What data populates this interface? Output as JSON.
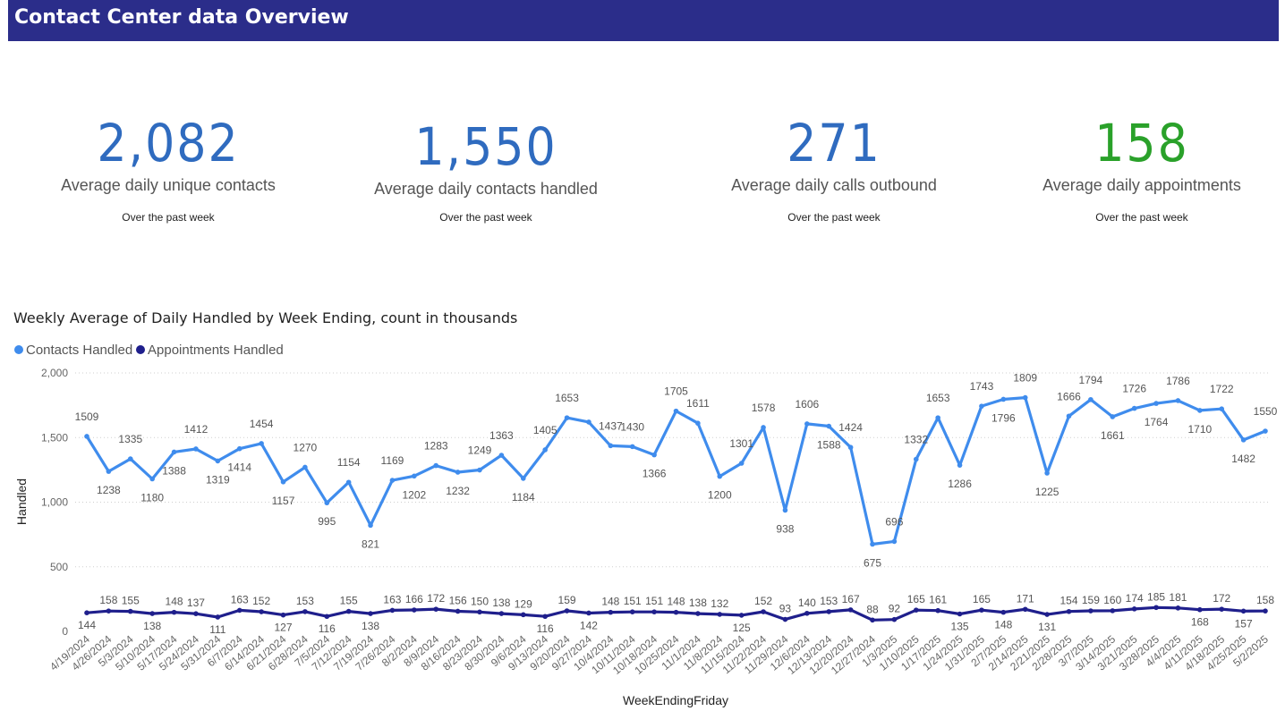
{
  "header": {
    "title": "Contact Center data Overview"
  },
  "kpis": [
    {
      "value": "2,082",
      "label": "Average daily unique contacts",
      "sub": "Over the past week",
      "color": "#2f6bbf"
    },
    {
      "value": "1,550",
      "label": "Average daily contacts handled",
      "sub": "Over the past week",
      "color": "#2f6bbf"
    },
    {
      "value": "271",
      "label": "Average daily calls outbound",
      "sub": "Over the past week",
      "color": "#2f6bbf"
    },
    {
      "value": "158",
      "label": "Average daily appointments",
      "sub": "Over the past week",
      "color": "#2aa12a"
    }
  ],
  "chart_data": {
    "type": "line",
    "title": "Weekly Average of Daily Handled by Week Ending, count in thousands",
    "xlabel": "WeekEndingFriday",
    "ylabel": "Handled",
    "ylim": [
      0,
      2000
    ],
    "yticks": [
      0,
      500,
      1000,
      1500,
      2000
    ],
    "ytick_labels": [
      "0",
      "500",
      "1,000",
      "1,500",
      "2,000"
    ],
    "grid": true,
    "legend": "top-left",
    "categories": [
      "4/19/2024",
      "4/26/2024",
      "5/3/2024",
      "5/10/2024",
      "5/17/2024",
      "5/24/2024",
      "5/31/2024",
      "6/7/2024",
      "6/14/2024",
      "6/21/2024",
      "6/28/2024",
      "7/5/2024",
      "7/12/2024",
      "7/19/2024",
      "7/26/2024",
      "8/2/2024",
      "8/9/2024",
      "8/16/2024",
      "8/23/2024",
      "8/30/2024",
      "9/6/2024",
      "9/13/2024",
      "9/20/2024",
      "9/27/2024",
      "10/4/2024",
      "10/11/2024",
      "10/18/2024",
      "10/25/2024",
      "11/1/2024",
      "11/8/2024",
      "11/15/2024",
      "11/22/2024",
      "11/29/2024",
      "12/6/2024",
      "12/13/2024",
      "12/20/2024",
      "12/27/2024",
      "1/3/2025",
      "1/10/2025",
      "1/17/2025",
      "1/24/2025",
      "1/31/2025",
      "2/7/2025",
      "2/14/2025",
      "2/21/2025",
      "2/28/2025",
      "3/7/2025",
      "3/14/2025",
      "3/21/2025",
      "3/28/2025",
      "4/4/2025",
      "4/11/2025",
      "4/18/2025",
      "4/25/2025",
      "5/2/2025"
    ],
    "series": [
      {
        "name": "Contacts Handled",
        "color": "#3f8ced",
        "values": [
          1509,
          1238,
          1335,
          1180,
          1388,
          1412,
          1319,
          1414,
          1454,
          1157,
          1270,
          995,
          1154,
          821,
          1169,
          1202,
          1283,
          1232,
          1249,
          1363,
          1184,
          1405,
          1653,
          1620,
          1437,
          1430,
          1366,
          1705,
          1611,
          1200,
          1301,
          1578,
          938,
          1606,
          1588,
          1424,
          675,
          696,
          1332,
          1653,
          1286,
          1743,
          1796,
          1809,
          1225,
          1666,
          1794,
          1661,
          1726,
          1764,
          1786,
          1710,
          1722,
          1482,
          1550
        ]
      },
      {
        "name": "Appointments Handled",
        "color": "#1f1f8c",
        "values": [
          144,
          158,
          155,
          138,
          148,
          137,
          111,
          163,
          152,
          127,
          153,
          116,
          155,
          138,
          163,
          166,
          172,
          156,
          150,
          138,
          129,
          116,
          159,
          142,
          148,
          151,
          151,
          148,
          138,
          132,
          125,
          152,
          93,
          140,
          153,
          167,
          88,
          92,
          165,
          161,
          135,
          165,
          148,
          171,
          131,
          154,
          159,
          160,
          174,
          185,
          181,
          168,
          172,
          157,
          158
        ]
      }
    ],
    "contacts_labels": [
      "1509",
      "1238",
      "1335",
      "1180",
      "1388",
      "1412",
      "1319",
      "1414",
      "1454",
      "1157",
      "1270",
      "995",
      "1154",
      "821",
      "1169",
      "1202",
      "1283",
      "1232",
      "1249",
      "1363",
      "1184",
      "1405",
      "1653",
      "",
      "1437",
      "1430",
      "1366",
      "1705",
      "1611",
      "1200",
      "1301",
      "1578",
      "938",
      "1606",
      "1588",
      "1424",
      "675",
      "696",
      "1332",
      "1653",
      "1286",
      "1743",
      "1796",
      "1809",
      "1225",
      "1666",
      "1794",
      "1661",
      "1726",
      "1764",
      "1786",
      "1710",
      "1722",
      "1482",
      "1550"
    ],
    "contacts_label_pos": [
      "a",
      "b",
      "a",
      "b",
      "b",
      "a",
      "b",
      "b",
      "a",
      "b",
      "a",
      "b",
      "a",
      "b",
      "a",
      "b",
      "a",
      "b",
      "a",
      "a",
      "b",
      "a",
      "a",
      "a",
      "a",
      "a",
      "b",
      "a",
      "a",
      "b",
      "a",
      "a",
      "b",
      "a",
      "b",
      "a",
      "b",
      "a",
      "a",
      "a",
      "b",
      "a",
      "b",
      "a",
      "b",
      "a",
      "a",
      "b",
      "a",
      "b",
      "a",
      "b",
      "a",
      "b",
      "a"
    ],
    "appts_label_pos": [
      "b",
      "a",
      "a",
      "b",
      "a",
      "a",
      "b",
      "a",
      "a",
      "b",
      "a",
      "b",
      "a",
      "b",
      "a",
      "a",
      "a",
      "a",
      "a",
      "a",
      "a",
      "b",
      "a",
      "b",
      "a",
      "a",
      "a",
      "a",
      "a",
      "a",
      "b",
      "a",
      "a",
      "a",
      "a",
      "a",
      "a",
      "a",
      "a",
      "a",
      "b",
      "a",
      "b",
      "a",
      "b",
      "a",
      "a",
      "a",
      "a",
      "a",
      "a",
      "b",
      "a",
      "b",
      "a"
    ]
  }
}
